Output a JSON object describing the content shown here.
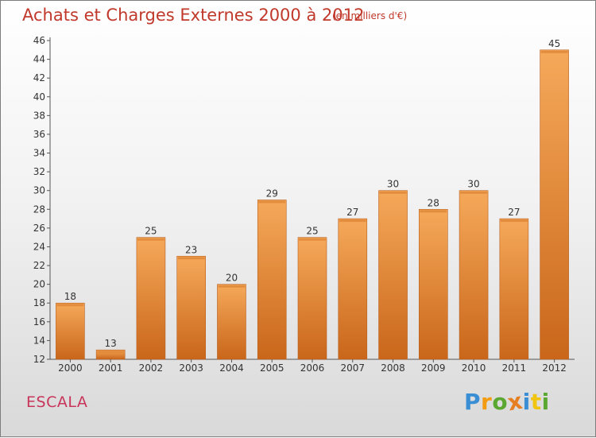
{
  "header": {
    "title": "Achats et Charges Externes 2000 à 2012",
    "unit": "(en milliers d'€)"
  },
  "footer": {
    "commune": "ESCALA",
    "logo": {
      "letters": [
        "P",
        "r",
        "o",
        "x",
        "i",
        "t",
        "i"
      ],
      "colors": [
        "#3a8ed4",
        "#f39c12",
        "#5aa832",
        "#e67e22",
        "#3a8ed4",
        "#f1c40f",
        "#5aa832"
      ]
    }
  },
  "colors": {
    "bar_light": "#f6a95a",
    "bar_dark": "#c9661a",
    "title": "#c0392b"
  },
  "chart_data": {
    "type": "bar",
    "categories": [
      "2000",
      "2001",
      "2002",
      "2003",
      "2004",
      "2005",
      "2006",
      "2007",
      "2008",
      "2009",
      "2010",
      "2011",
      "2012"
    ],
    "values": [
      18,
      13,
      25,
      23,
      20,
      29,
      25,
      27,
      30,
      28,
      30,
      27,
      45
    ],
    "title": "Achats et Charges Externes 2000 à 2012",
    "ylim": [
      12,
      46
    ],
    "yticks": [
      12,
      14,
      16,
      18,
      20,
      22,
      24,
      26,
      28,
      30,
      32,
      34,
      36,
      38,
      40,
      42,
      44,
      46
    ],
    "grid": false,
    "legend": "none"
  }
}
